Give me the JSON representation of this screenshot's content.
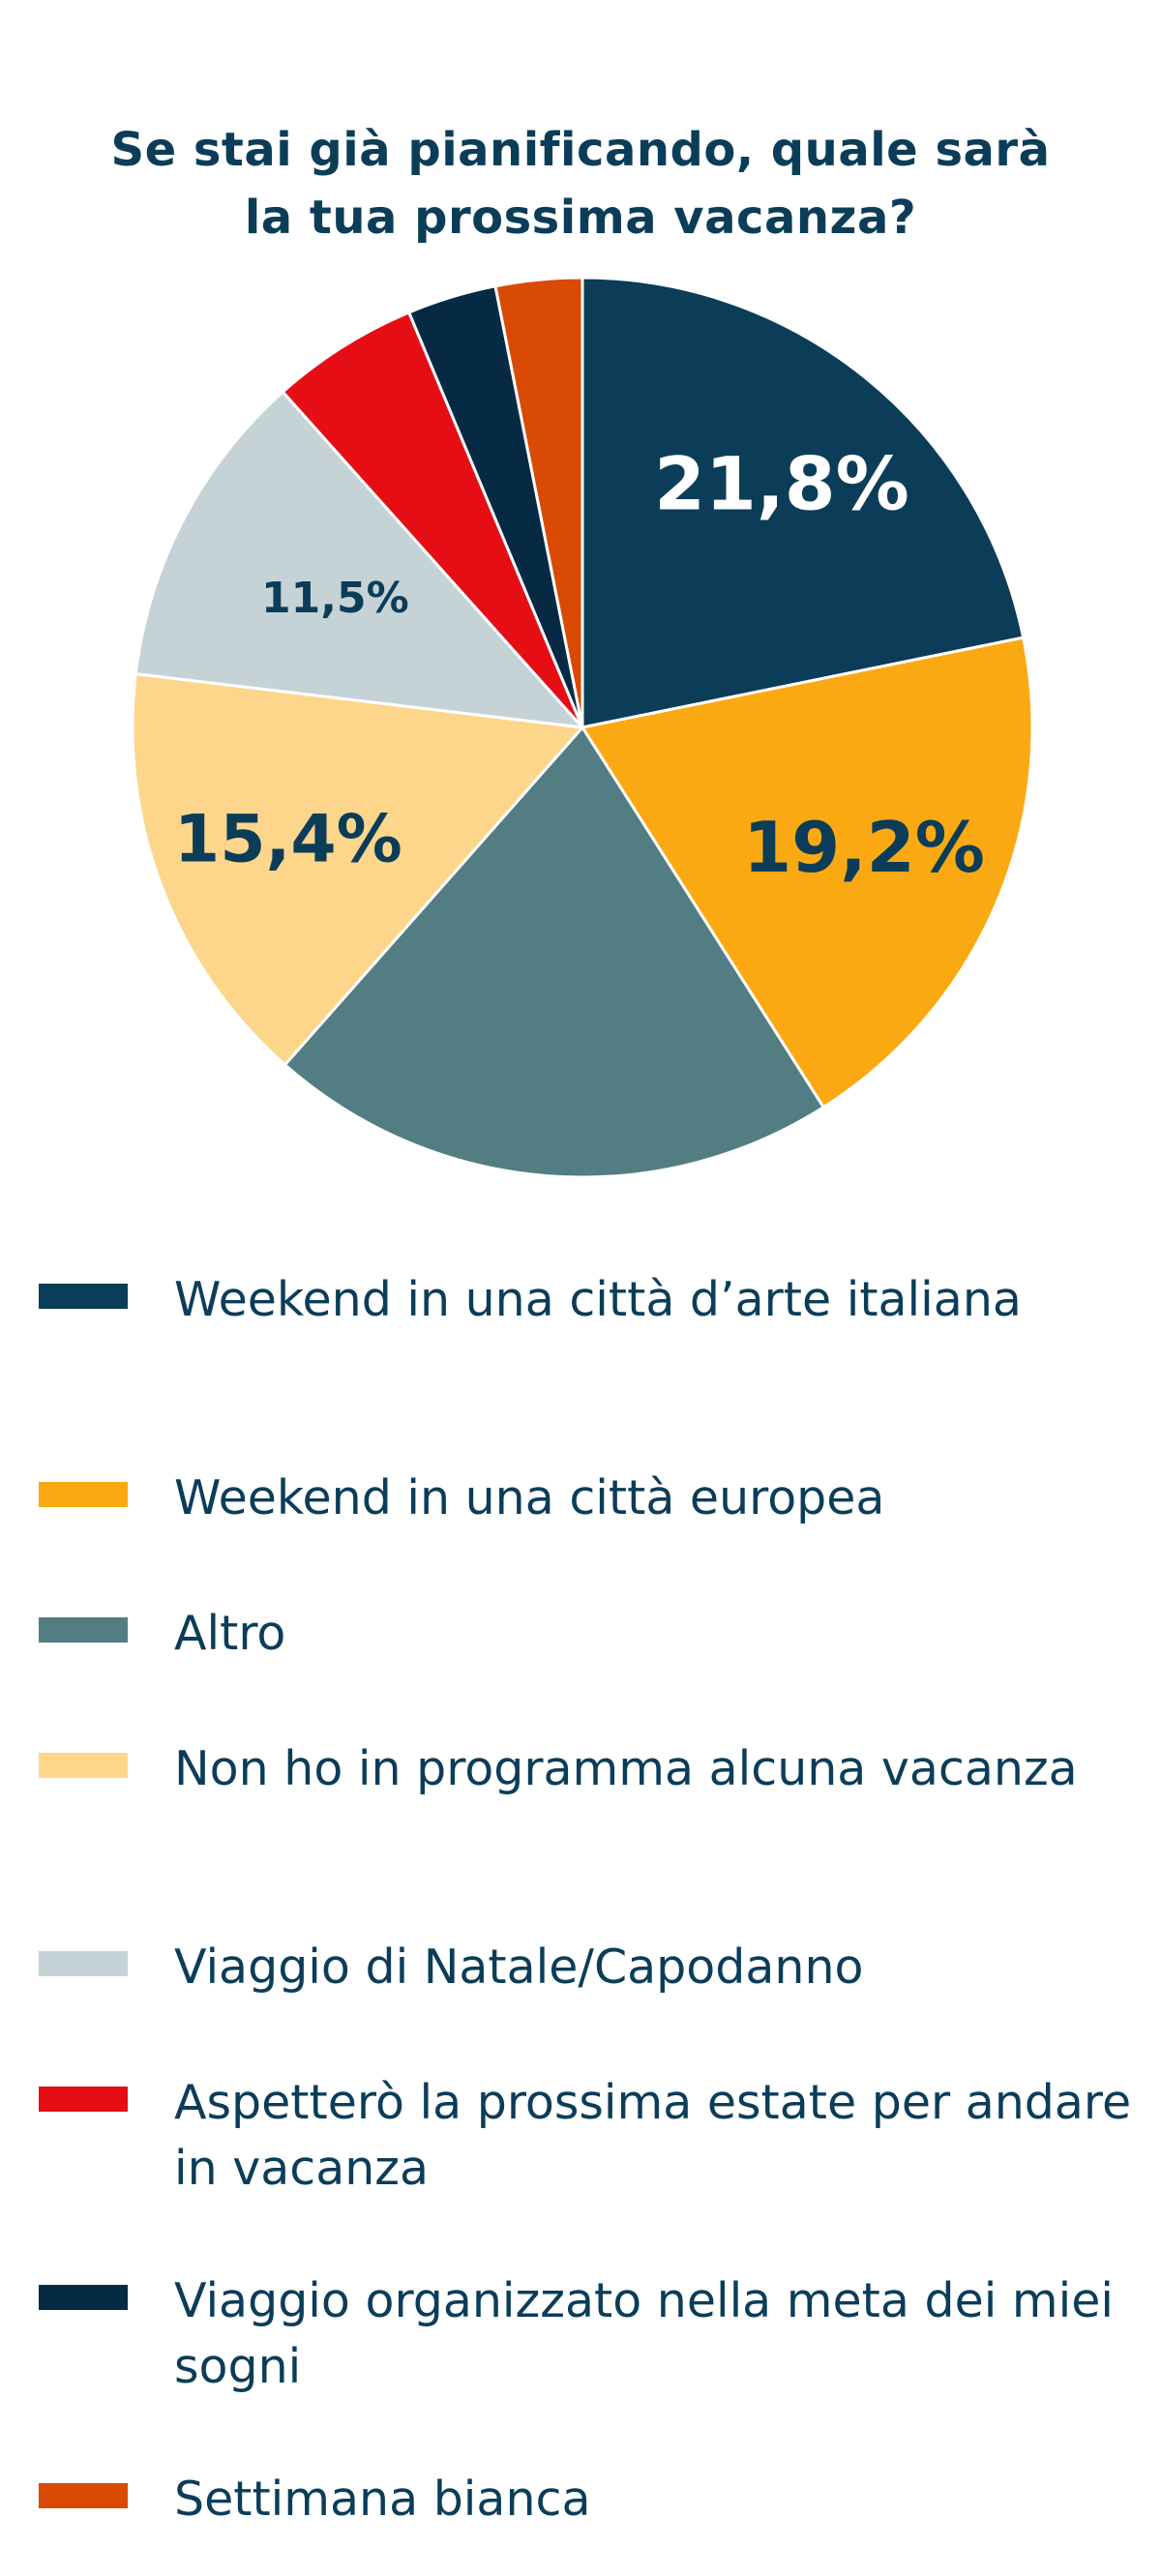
{
  "title": {
    "line1": "Se stai già pianificando, quale sarà",
    "line2": "la tua prossima vacanza?"
  },
  "colors": {
    "text": "#0b3d59",
    "slice_border": "#ffffff"
  },
  "chart_data": {
    "type": "pie",
    "title": "Se stai già pianificando, quale sarà la tua prossima vacanza?",
    "start_angle_deg": 0,
    "direction": "clockwise",
    "legend_placement": "bottom",
    "slices": [
      {
        "label": "Weekend in una città d’arte italiana",
        "value": 21.8,
        "display": "21,8%",
        "color": "#0b3d59",
        "label_color": "#ffffff"
      },
      {
        "label": "Weekend in una città europea",
        "value": 19.2,
        "display": "19,2%",
        "color": "#fba913",
        "label_color": "#0b3d59"
      },
      {
        "label": "Altro",
        "value": 20.5,
        "display": "",
        "color": "#527d83",
        "label_color": "#ffffff"
      },
      {
        "label": "Non ho in programma alcuna vacanza",
        "value": 15.4,
        "display": "15,4%",
        "color": "#fdd68c",
        "label_color": "#0b3d59"
      },
      {
        "label": "Viaggio di Natale/Capodanno",
        "value": 11.5,
        "display": "11,5%",
        "color": "#c6d3d6",
        "label_color": "#0b3d59"
      },
      {
        "label": "Aspetterò la prossima estate per andare in vacanza",
        "value": 5.3,
        "display": "",
        "color": "#e50e15",
        "label_color": "#ffffff"
      },
      {
        "label": "Viaggio organizzato nella meta dei miei sogni",
        "value": 3.2,
        "display": "",
        "color": "#062a44",
        "label_color": "#ffffff"
      },
      {
        "label": "Settimana bianca",
        "value": 3.1,
        "display": "",
        "color": "#d94a05",
        "label_color": "#ffffff"
      }
    ]
  },
  "legend": {
    "items": [
      {
        "label": "Weekend in una città d’arte italiana",
        "color": "#0b3d59"
      },
      {
        "label": "Weekend in una città europea",
        "color": "#fba913"
      },
      {
        "label": "Altro",
        "color": "#527d83"
      },
      {
        "label": "Non ho in programma alcuna vacanza",
        "color": "#fdd68c"
      },
      {
        "label": "Viaggio di Natale/Capodanno",
        "color": "#c6d3d6"
      },
      {
        "label": "Aspetterò la prossima estate per andare in vacanza",
        "color": "#e50e15"
      },
      {
        "label": "Viaggio organizzato nella meta dei miei sogni",
        "color": "#062a44"
      },
      {
        "label": "Settimana bianca",
        "color": "#d94a05"
      }
    ]
  }
}
